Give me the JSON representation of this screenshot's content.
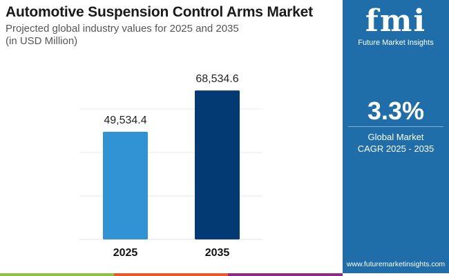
{
  "header": {
    "title": "Automotive Suspension Control Arms Market",
    "subtitle_line1": "Projected global industry values for 2025 and 2035",
    "subtitle_line2": "(in USD Million)"
  },
  "chart_data": {
    "type": "bar",
    "categories": [
      "2025",
      "2035"
    ],
    "values": [
      49534.4,
      68534.6
    ],
    "value_labels": [
      "49,534.4",
      "68,534.6"
    ],
    "ylim": [
      0,
      80000
    ],
    "grid": true,
    "gridlines": [
      20000,
      40000,
      60000
    ],
    "colors": [
      "#3193d3",
      "#033a73"
    ],
    "title": "",
    "xlabel": "",
    "ylabel": ""
  },
  "panel": {
    "brand_logo": "fmi",
    "brand_name": "Future Market Insights",
    "cagr_value": "3.3%",
    "cagr_label_line1": "Global Market",
    "cagr_label_line2": "CAGR 2025 - 2035",
    "url": "www.futuremarketinsights.com",
    "bg_color": "#1f6eaa"
  },
  "footer_colors": [
    "#8cc043",
    "#e8582a",
    "#8a2b84"
  ]
}
